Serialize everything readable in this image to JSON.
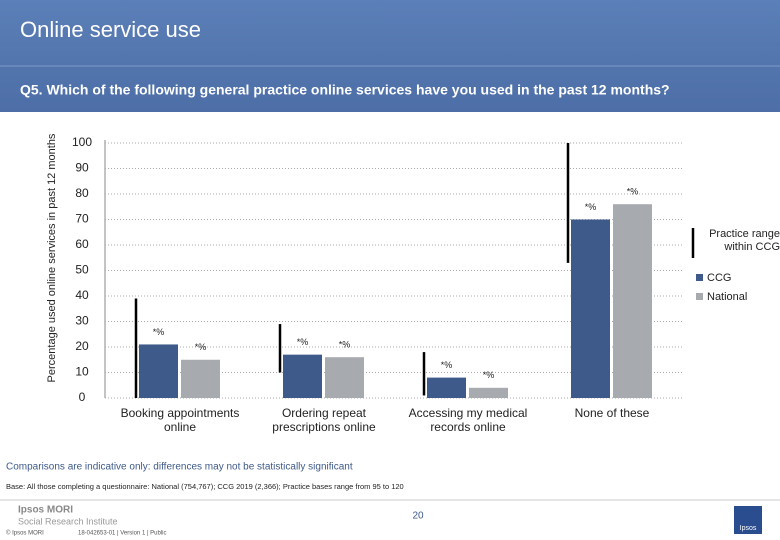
{
  "header": {
    "title": "Online service use"
  },
  "chart_data": {
    "type": "bar",
    "title": "Q5. Which of the following general practice online services have you used in the past 12 months?",
    "y_label": "Percentage used online services in past 12 months",
    "categories": [
      "Booking appointments online",
      "Ordering repeat prescriptions online",
      "Accessing my medical records online",
      "None of these"
    ],
    "series": [
      {
        "name": "CCG",
        "color": "#3e5a8a",
        "values": [
          21,
          17,
          8,
          70
        ],
        "point_labels": [
          "*%",
          "*%",
          "*%",
          "*%"
        ]
      },
      {
        "name": "National",
        "color": "#a7aaae",
        "values": [
          15,
          16,
          4,
          76
        ],
        "point_labels": [
          "*%",
          "*%",
          "*%",
          "*%"
        ]
      }
    ],
    "range": {
      "name": "Practice range within CCG",
      "color": "#000000",
      "low": [
        0,
        10,
        1,
        53
      ],
      "high": [
        39,
        29,
        18,
        100
      ]
    },
    "ylim": [
      0,
      100
    ],
    "yticks": [
      0,
      10,
      20,
      30,
      40,
      50,
      60,
      70,
      80,
      90,
      100
    ],
    "grid": true,
    "legend": "right"
  },
  "footer": {
    "note": "Comparisons are indicative only: differences may not be statistically significant",
    "base": "Base: All those completing a questionnaire: National (754,767); CCG 2019 (2,366); Practice bases range from 95 to 120",
    "org": "Ipsos MORI",
    "institute": "Social Research Institute",
    "page": "20",
    "copyright": "© Ipsos MORI",
    "job": "18-042653-01 | Version 1 | Public",
    "logo": "Ipsos"
  }
}
